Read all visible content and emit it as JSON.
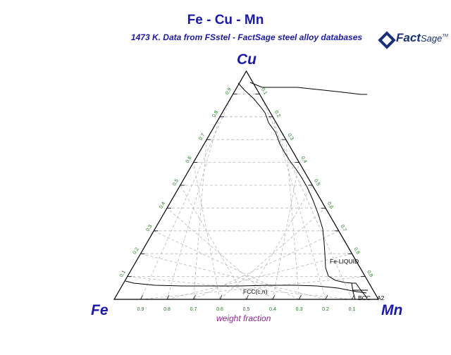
{
  "title": "Fe - Cu - Mn",
  "subtitle": "1473 K.  Data from FSstel - FactSage steel alloy databases",
  "logo": {
    "main": "Fact",
    "sage": "Sage",
    "mark": "TM"
  },
  "corners": {
    "left": "Fe",
    "top": "Cu",
    "right": "Mn"
  },
  "axis_label": "weight fraction",
  "ticks": [
    "0.1",
    "0.2",
    "0.3",
    "0.4",
    "0.5",
    "0.6",
    "0.7",
    "0.8",
    "0.9"
  ],
  "bottom_ticks": [
    "0.9",
    "0.8",
    "0.7",
    "0.6",
    "0.5",
    "0.4",
    "0.3",
    "0.2",
    "0.1"
  ],
  "phases": {
    "liquid": "Fe-LIQUID",
    "fcc": "FCC(c,n)",
    "bcc": "BCC",
    "a2": "A2"
  },
  "colors": {
    "title": "#1a1aa6",
    "ticks": "#1a7a1a",
    "axis_label": "#8a2a8a",
    "grid": "#b8b8b8"
  }
}
